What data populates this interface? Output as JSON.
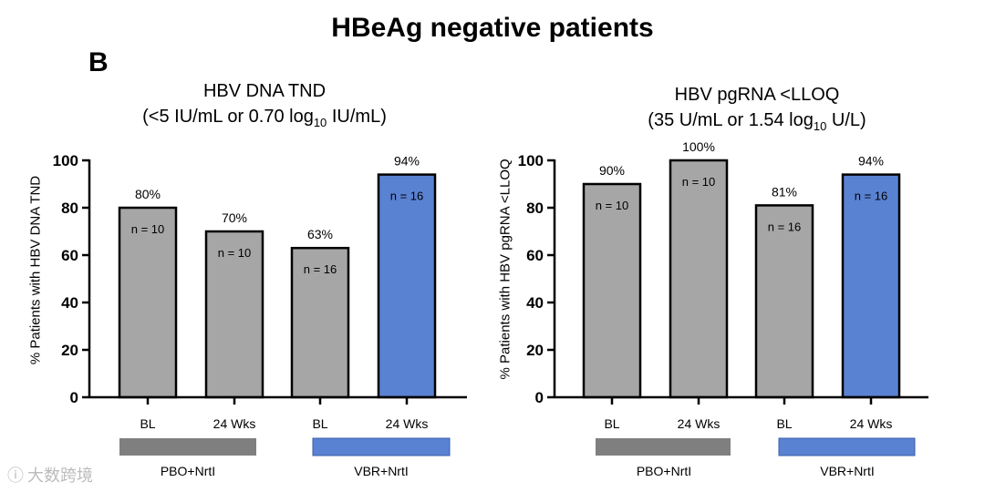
{
  "figure": {
    "title": "HBeAg negative patients",
    "panel_letter": "B",
    "watermark": "大数跨境"
  },
  "chart_data": [
    {
      "type": "bar",
      "title_line1": "HBV DNA TND",
      "title_line2": {
        "pre": "(<5 IU/mL or 0.70 log",
        "sub": "10",
        "post": " IU/mL)"
      },
      "ylabel": "% Patients with HBV DNA TND",
      "ylim": [
        0,
        100
      ],
      "yticks": [
        0,
        20,
        40,
        60,
        80,
        100
      ],
      "categories": [
        "BL",
        "24 Wks",
        "BL",
        "24 Wks"
      ],
      "values": [
        80,
        70,
        63,
        94
      ],
      "value_labels": [
        "80%",
        "70%",
        "63%",
        "94%"
      ],
      "n_labels": [
        "n = 10",
        "n = 10",
        "n = 16",
        "n = 16"
      ],
      "bar_colors": [
        "#a6a6a6",
        "#a6a6a6",
        "#a6a6a6",
        "#5a82d2"
      ],
      "groups": [
        {
          "label": "PBO+NrtI",
          "color": "#7f7f7f"
        },
        {
          "label": "VBR+NrtI",
          "color": "#5a82d2"
        }
      ]
    },
    {
      "type": "bar",
      "title_line1": "HBV pgRNA <LLOQ",
      "title_line2": {
        "pre": "(35 U/mL or 1.54 log",
        "sub": "10",
        "post": " U/L)"
      },
      "ylabel": "% Patients with HBV pgRNA <LLOQ",
      "ylim": [
        0,
        100
      ],
      "yticks": [
        0,
        20,
        40,
        60,
        80,
        100
      ],
      "categories": [
        "BL",
        "24 Wks",
        "BL",
        "24 Wks"
      ],
      "values": [
        90,
        100,
        81,
        94
      ],
      "value_labels": [
        "90%",
        "100%",
        "81%",
        "94%"
      ],
      "n_labels": [
        "n = 10",
        "n = 10",
        "n = 16",
        "n = 16"
      ],
      "bar_colors": [
        "#a6a6a6",
        "#a6a6a6",
        "#a6a6a6",
        "#5a82d2"
      ],
      "groups": [
        {
          "label": "PBO+NrtI",
          "color": "#7f7f7f"
        },
        {
          "label": "VBR+NrtI",
          "color": "#5a82d2"
        }
      ]
    }
  ]
}
